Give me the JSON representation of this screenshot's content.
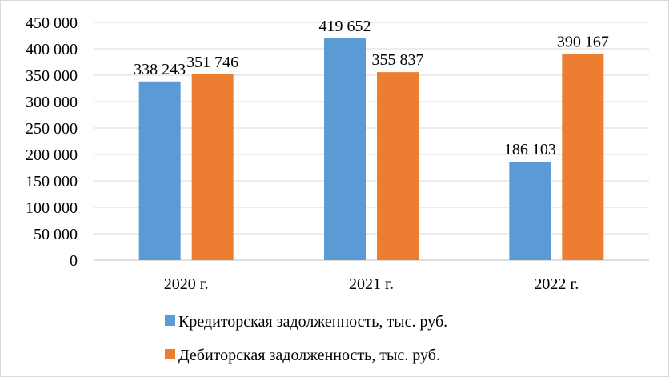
{
  "chart_data": {
    "type": "bar",
    "title": "",
    "xlabel": "",
    "ylabel": "",
    "categories": [
      "2020 г.",
      "2021 г.",
      "2022 г."
    ],
    "series": [
      {
        "name": "Кредиторская задолженность, тыс. руб.",
        "values": [
          338243,
          419652,
          186103
        ],
        "labels": [
          "338 243",
          "419 652",
          "186 103"
        ],
        "color": "#5b9bd5"
      },
      {
        "name": "Дебиторская задолженность, тыс. руб.",
        "values": [
          351746,
          355837,
          390167
        ],
        "labels": [
          "351 746",
          "355 837",
          "390 167"
        ],
        "color": "#ed7d31"
      }
    ],
    "ylim": [
      0,
      450000
    ],
    "yticks": [
      0,
      50000,
      100000,
      150000,
      200000,
      250000,
      300000,
      350000,
      400000,
      450000
    ],
    "ytick_labels": [
      "0",
      "50 000",
      "100 000",
      "150 000",
      "200 000",
      "250 000",
      "300 000",
      "350 000",
      "400 000",
      "450 000"
    ],
    "grid": true,
    "legend_position": "bottom"
  }
}
